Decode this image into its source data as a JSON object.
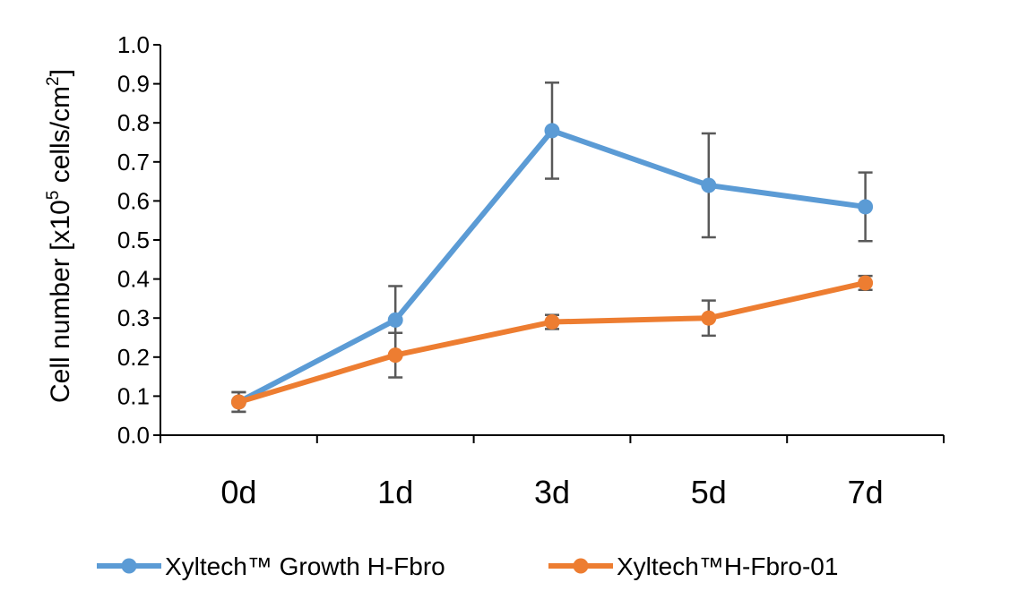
{
  "chart_data": {
    "type": "line",
    "categories": [
      "0d",
      "1d",
      "3d",
      "5d",
      "7d"
    ],
    "ylabel": {
      "prefix": "Cell number  [x10",
      "superscript": "5",
      "middle": " cells/cm",
      "superscript2": "2",
      "suffix": "]"
    },
    "ylim": [
      0,
      1.0
    ],
    "yticks": [
      "0.0",
      "0.1",
      "0.2",
      "0.3",
      "0.4",
      "0.5",
      "0.6",
      "0.7",
      "0.8",
      "0.9",
      "1.0"
    ],
    "grid": false,
    "legend_position": "bottom",
    "series": [
      {
        "name": "Xyltech™ Growth H-Fbro",
        "color": "#5B9BD5",
        "values": [
          0.085,
          0.295,
          0.78,
          0.64,
          0.585
        ],
        "error": [
          0.025,
          0.087,
          0.123,
          0.133,
          0.088
        ]
      },
      {
        "name": "Xyltech™H-Fbro-01",
        "color": "#ED7D31",
        "values": [
          0.085,
          0.205,
          0.29,
          0.3,
          0.39
        ],
        "error": [
          0.025,
          0.057,
          0.018,
          0.045,
          0.018
        ]
      }
    ],
    "error_bar_color": "#595959"
  }
}
